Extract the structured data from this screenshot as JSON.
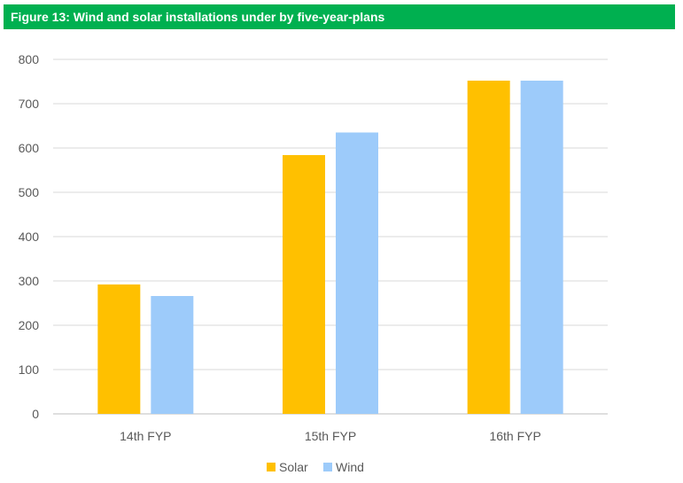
{
  "chart_data": {
    "type": "bar",
    "title": "Figure 13: Wind and solar installations under by five-year-plans",
    "categories": [
      "14th FYP",
      "15th FYP",
      "16th FYP"
    ],
    "series": [
      {
        "name": "Solar",
        "color": "#ffc000",
        "values": [
          292,
          584,
          752
        ]
      },
      {
        "name": "Wind",
        "color": "#9dcbfa",
        "values": [
          266,
          635,
          752
        ]
      }
    ],
    "ylim": [
      0,
      800
    ],
    "yticks": [
      0,
      100,
      200,
      300,
      400,
      500,
      600,
      700,
      800
    ],
    "grid": true,
    "legend_position": "bottom",
    "header_color": "#00b050"
  }
}
